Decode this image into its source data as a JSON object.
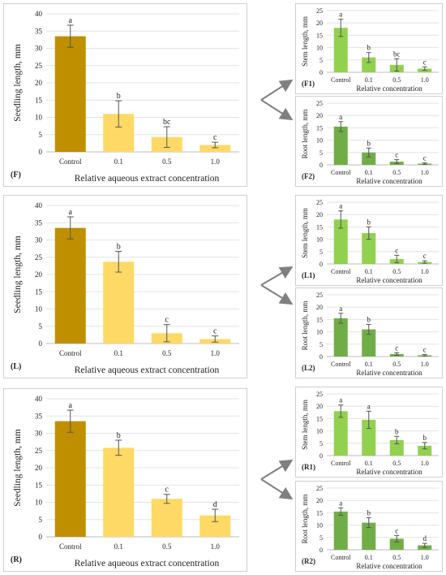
{
  "colors": {
    "control_main": "#bf8f00",
    "treatment_main": "#ffd966",
    "stem": "#92d050",
    "root": "#70ad47",
    "arrow": "#808080"
  },
  "chart_data": [
    {
      "id": "F",
      "panel_label": "(F)",
      "type": "bar",
      "categories": [
        "Control",
        "0.1",
        "0.5",
        "1.0"
      ],
      "values": [
        33.5,
        11.0,
        4.3,
        2.0
      ],
      "errors": [
        3.2,
        3.8,
        3.0,
        0.8
      ],
      "letters": [
        "a",
        "b",
        "bc",
        "c"
      ],
      "ylabel": "Seedling length, mm",
      "xlabel": "Relative aqueous extract concentration",
      "ylim": [
        0,
        40
      ],
      "yticks": [
        0,
        5,
        10,
        15,
        20,
        25,
        30,
        35,
        40
      ]
    },
    {
      "id": "F1",
      "panel_label": "(F1)",
      "type": "bar",
      "categories": [
        "Control",
        "0.1",
        "0.5",
        "1.0"
      ],
      "values": [
        18.0,
        6.0,
        3.0,
        1.5
      ],
      "errors": [
        3.5,
        2.0,
        2.5,
        0.7
      ],
      "letters": [
        "a",
        "b",
        "bc",
        "c"
      ],
      "ylabel": "Stem length, mm",
      "xlabel": "Relative concentration",
      "ylim": [
        0,
        25
      ],
      "yticks": [
        0,
        5,
        10,
        15,
        20,
        25
      ]
    },
    {
      "id": "F2",
      "panel_label": "(F2)",
      "type": "bar",
      "categories": [
        "Control",
        "0.1",
        "0.5",
        "1.0"
      ],
      "values": [
        15.5,
        5.0,
        1.3,
        0.5
      ],
      "errors": [
        2.0,
        1.8,
        0.8,
        0.3
      ],
      "letters": [
        "a",
        "b",
        "c",
        "c"
      ],
      "ylabel": "Root length, mm",
      "xlabel": "Relative concentration",
      "ylim": [
        0,
        25
      ],
      "yticks": [
        0,
        5,
        10,
        15,
        20,
        25
      ]
    },
    {
      "id": "L",
      "panel_label": "(L)",
      "type": "bar",
      "categories": [
        "Control",
        "0.1",
        "0.5",
        "1.0"
      ],
      "values": [
        33.5,
        23.7,
        3.0,
        1.3
      ],
      "errors": [
        3.2,
        3.0,
        2.5,
        0.9
      ],
      "letters": [
        "a",
        "b",
        "c",
        "c"
      ],
      "ylabel": "Seedling length, mm",
      "xlabel": "Relative aqueous extract concentration",
      "ylim": [
        0,
        40
      ],
      "yticks": [
        0,
        5,
        10,
        15,
        20,
        25,
        30,
        35,
        40
      ]
    },
    {
      "id": "L1",
      "panel_label": "(L1)",
      "type": "bar",
      "categories": [
        "Control",
        "0.1",
        "0.5",
        "1.0"
      ],
      "values": [
        18.0,
        12.5,
        2.0,
        0.8
      ],
      "errors": [
        3.5,
        2.5,
        1.5,
        0.5
      ],
      "letters": [
        "a",
        "b",
        "c",
        "c"
      ],
      "ylabel": "Stem length, mm",
      "xlabel": "Relative concentration",
      "ylim": [
        0,
        25
      ],
      "yticks": [
        0,
        5,
        10,
        15,
        20,
        25
      ]
    },
    {
      "id": "L2",
      "panel_label": "(L2)",
      "type": "bar",
      "categories": [
        "Control",
        "0.1",
        "0.5",
        "1.0"
      ],
      "values": [
        15.5,
        11.0,
        1.0,
        0.5
      ],
      "errors": [
        2.0,
        2.0,
        0.5,
        0.3
      ],
      "letters": [
        "a",
        "b",
        "c",
        "c"
      ],
      "ylabel": "Root length, mm",
      "xlabel": "Relative concentration",
      "ylim": [
        0,
        25
      ],
      "yticks": [
        0,
        5,
        10,
        15,
        20,
        25
      ]
    },
    {
      "id": "R",
      "panel_label": "(R)",
      "type": "bar",
      "categories": [
        "Control",
        "0.1",
        "0.5",
        "1.0"
      ],
      "values": [
        33.5,
        25.8,
        11.0,
        6.2
      ],
      "errors": [
        3.2,
        2.2,
        1.3,
        1.8
      ],
      "letters": [
        "a",
        "b",
        "c",
        "d"
      ],
      "ylabel": "Seedling length, mm",
      "xlabel": "Relative aqueous extract concentration",
      "ylim": [
        0,
        40
      ],
      "yticks": [
        0,
        5,
        10,
        15,
        20,
        25,
        30,
        35,
        40
      ]
    },
    {
      "id": "R1",
      "panel_label": "(R1)",
      "type": "bar",
      "categories": [
        "Control",
        "0.1",
        "0.5",
        "1.0"
      ],
      "values": [
        18.0,
        14.5,
        6.3,
        4.0
      ],
      "errors": [
        2.5,
        3.5,
        1.5,
        1.3
      ],
      "letters": [
        "a",
        "a",
        "b",
        "b"
      ],
      "ylabel": "Stem length, mm",
      "xlabel": "Relative concentration",
      "ylim": [
        0,
        25
      ],
      "yticks": [
        0,
        5,
        10,
        15,
        20,
        25
      ]
    },
    {
      "id": "R2",
      "panel_label": "(R2)",
      "type": "bar",
      "categories": [
        "Control",
        "0.1",
        "0.5",
        "1.0"
      ],
      "values": [
        15.5,
        11.0,
        4.5,
        1.8
      ],
      "errors": [
        1.5,
        2.0,
        1.3,
        0.8
      ],
      "letters": [
        "a",
        "b",
        "c",
        "d"
      ],
      "ylabel": "Root length, mm",
      "xlabel": "Relative concentration",
      "ylim": [
        0,
        25
      ],
      "yticks": [
        0,
        5,
        10,
        15,
        20,
        25
      ]
    }
  ]
}
